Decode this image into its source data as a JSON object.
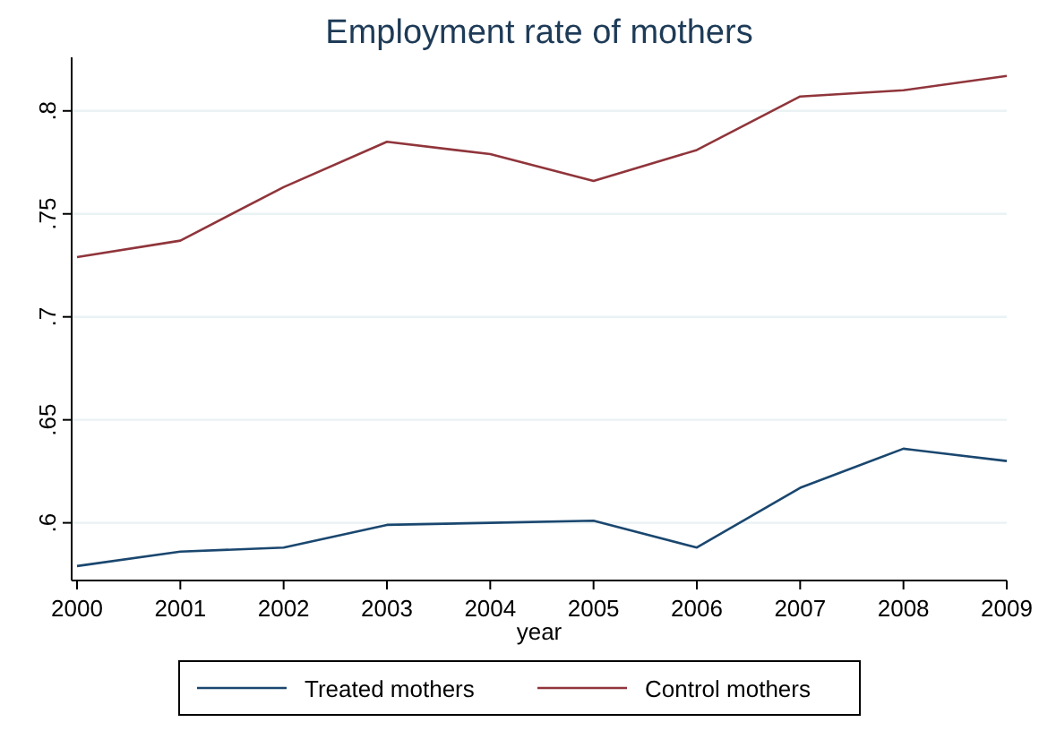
{
  "chart_data": {
    "type": "line",
    "title": "Employment rate of mothers",
    "xlabel": "year",
    "x": [
      2000,
      2001,
      2002,
      2003,
      2004,
      2005,
      2006,
      2007,
      2008,
      2009
    ],
    "xlim": [
      2000,
      2009
    ],
    "xticks": [
      2000,
      2001,
      2002,
      2003,
      2004,
      2005,
      2006,
      2007,
      2008,
      2009
    ],
    "ylim": [
      0.572,
      0.826
    ],
    "yticks": [
      {
        "value": 0.6,
        "label": ".6"
      },
      {
        "value": 0.65,
        "label": ".65"
      },
      {
        "value": 0.7,
        "label": ".7"
      },
      {
        "value": 0.75,
        "label": ".75"
      },
      {
        "value": 0.8,
        "label": ".8"
      }
    ],
    "grid": "y",
    "legend": "bottom",
    "series": [
      {
        "name": "Treated mothers",
        "color": "#1a476f",
        "values": [
          0.579,
          0.586,
          0.588,
          0.599,
          0.6,
          0.601,
          0.588,
          0.617,
          0.636,
          0.63
        ]
      },
      {
        "name": "Control mothers",
        "color": "#90353b",
        "values": [
          0.729,
          0.737,
          0.763,
          0.785,
          0.779,
          0.766,
          0.781,
          0.807,
          0.81,
          0.817
        ]
      }
    ]
  }
}
